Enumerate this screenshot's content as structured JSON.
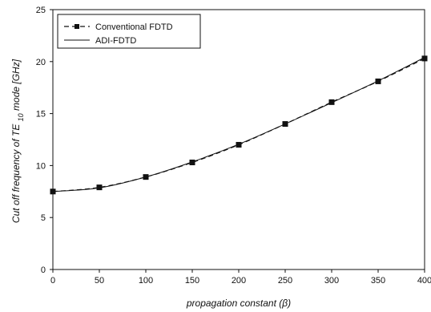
{
  "chart_data": {
    "type": "line",
    "xlabel": "propagation constant (β)",
    "ylabel": {
      "prefix": "Cut off frequency of TE",
      "subscript": "10",
      "suffix": " mode [GHz]"
    },
    "xlim": [
      0,
      400
    ],
    "ylim": [
      0,
      25
    ],
    "xticks": [
      0,
      50,
      100,
      150,
      200,
      250,
      300,
      350,
      400
    ],
    "yticks": [
      0,
      5,
      10,
      15,
      20,
      25
    ],
    "grid": false,
    "legend_position": "top-left",
    "x": [
      0,
      50,
      100,
      150,
      200,
      250,
      300,
      350,
      400
    ],
    "series": [
      {
        "name": "Conventional FDTD",
        "style": "dashed-with-square-markers",
        "values": [
          7.5,
          7.9,
          8.9,
          10.3,
          12.0,
          14.0,
          16.1,
          18.1,
          20.3
        ]
      },
      {
        "name": "ADI-FDTD",
        "style": "solid",
        "values": [
          7.5,
          7.85,
          8.9,
          10.35,
          12.05,
          14.0,
          16.05,
          18.15,
          20.4
        ]
      }
    ],
    "colors": {
      "axis": "#111111",
      "series": "#111111"
    }
  }
}
